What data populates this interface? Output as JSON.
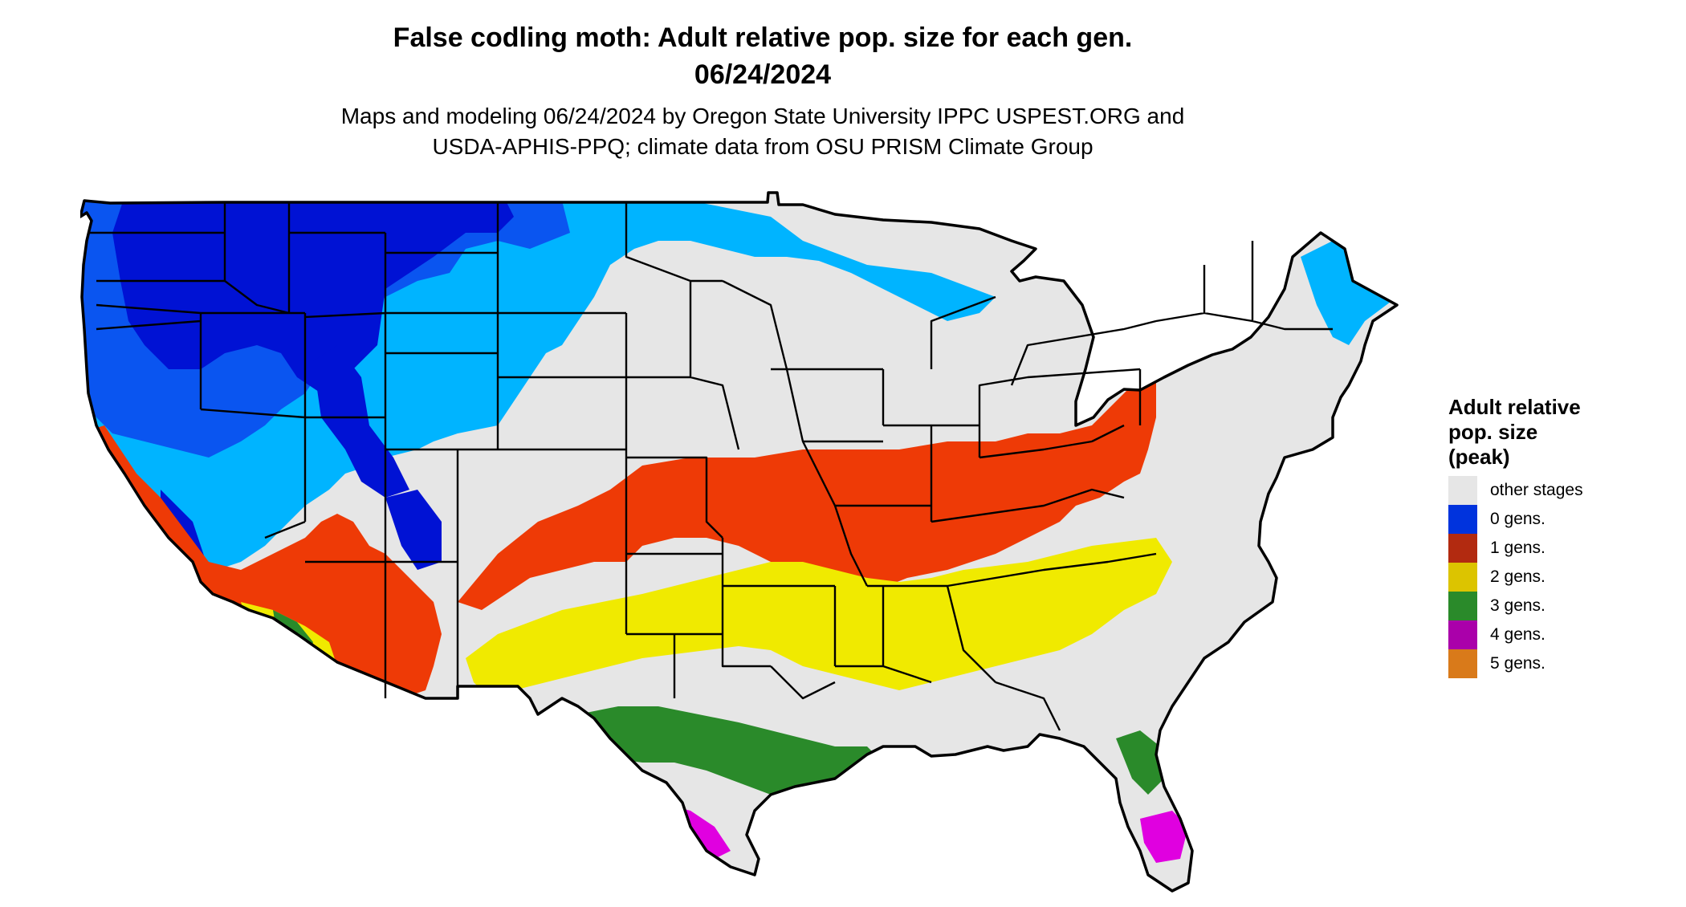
{
  "title": {
    "line1": "False codling moth: Adult relative pop. size for each gen.",
    "line2": "06/24/2024"
  },
  "subtitle": {
    "line1": "Maps and modeling 06/24/2024 by Oregon State University IPPC USPEST.ORG and",
    "line2": "USDA-APHIS-PPQ; climate data from OSU PRISM Climate Group"
  },
  "legend": {
    "title_line1": "Adult relative",
    "title_line2": "pop. size",
    "title_line3": "(peak)",
    "items": [
      {
        "label": "other stages",
        "color": "#e6e6e6"
      },
      {
        "label": "0 gens.",
        "color": "#0033dd"
      },
      {
        "label": "1 gens.",
        "color": "#b22a10"
      },
      {
        "label": "2 gens.",
        "color": "#dcc400"
      },
      {
        "label": "3 gens.",
        "color": "#2a8a2a"
      },
      {
        "label": "4 gens.",
        "color": "#aa00aa"
      },
      {
        "label": "5 gens.",
        "color": "#d97a1a"
      }
    ]
  },
  "map_colors": {
    "background_land": "#e6e6e6",
    "gen0_dark": "#0012d4",
    "gen0_mid": "#0a55f0",
    "gen0_light": "#00b4ff",
    "gen1": "#ee3a06",
    "gen2": "#f0ea00",
    "gen3": "#2a8a2a",
    "gen3_light": "#7ed87e",
    "gen4": "#e000e0",
    "gen5": "#ff8c1a",
    "borders": "#000000"
  }
}
